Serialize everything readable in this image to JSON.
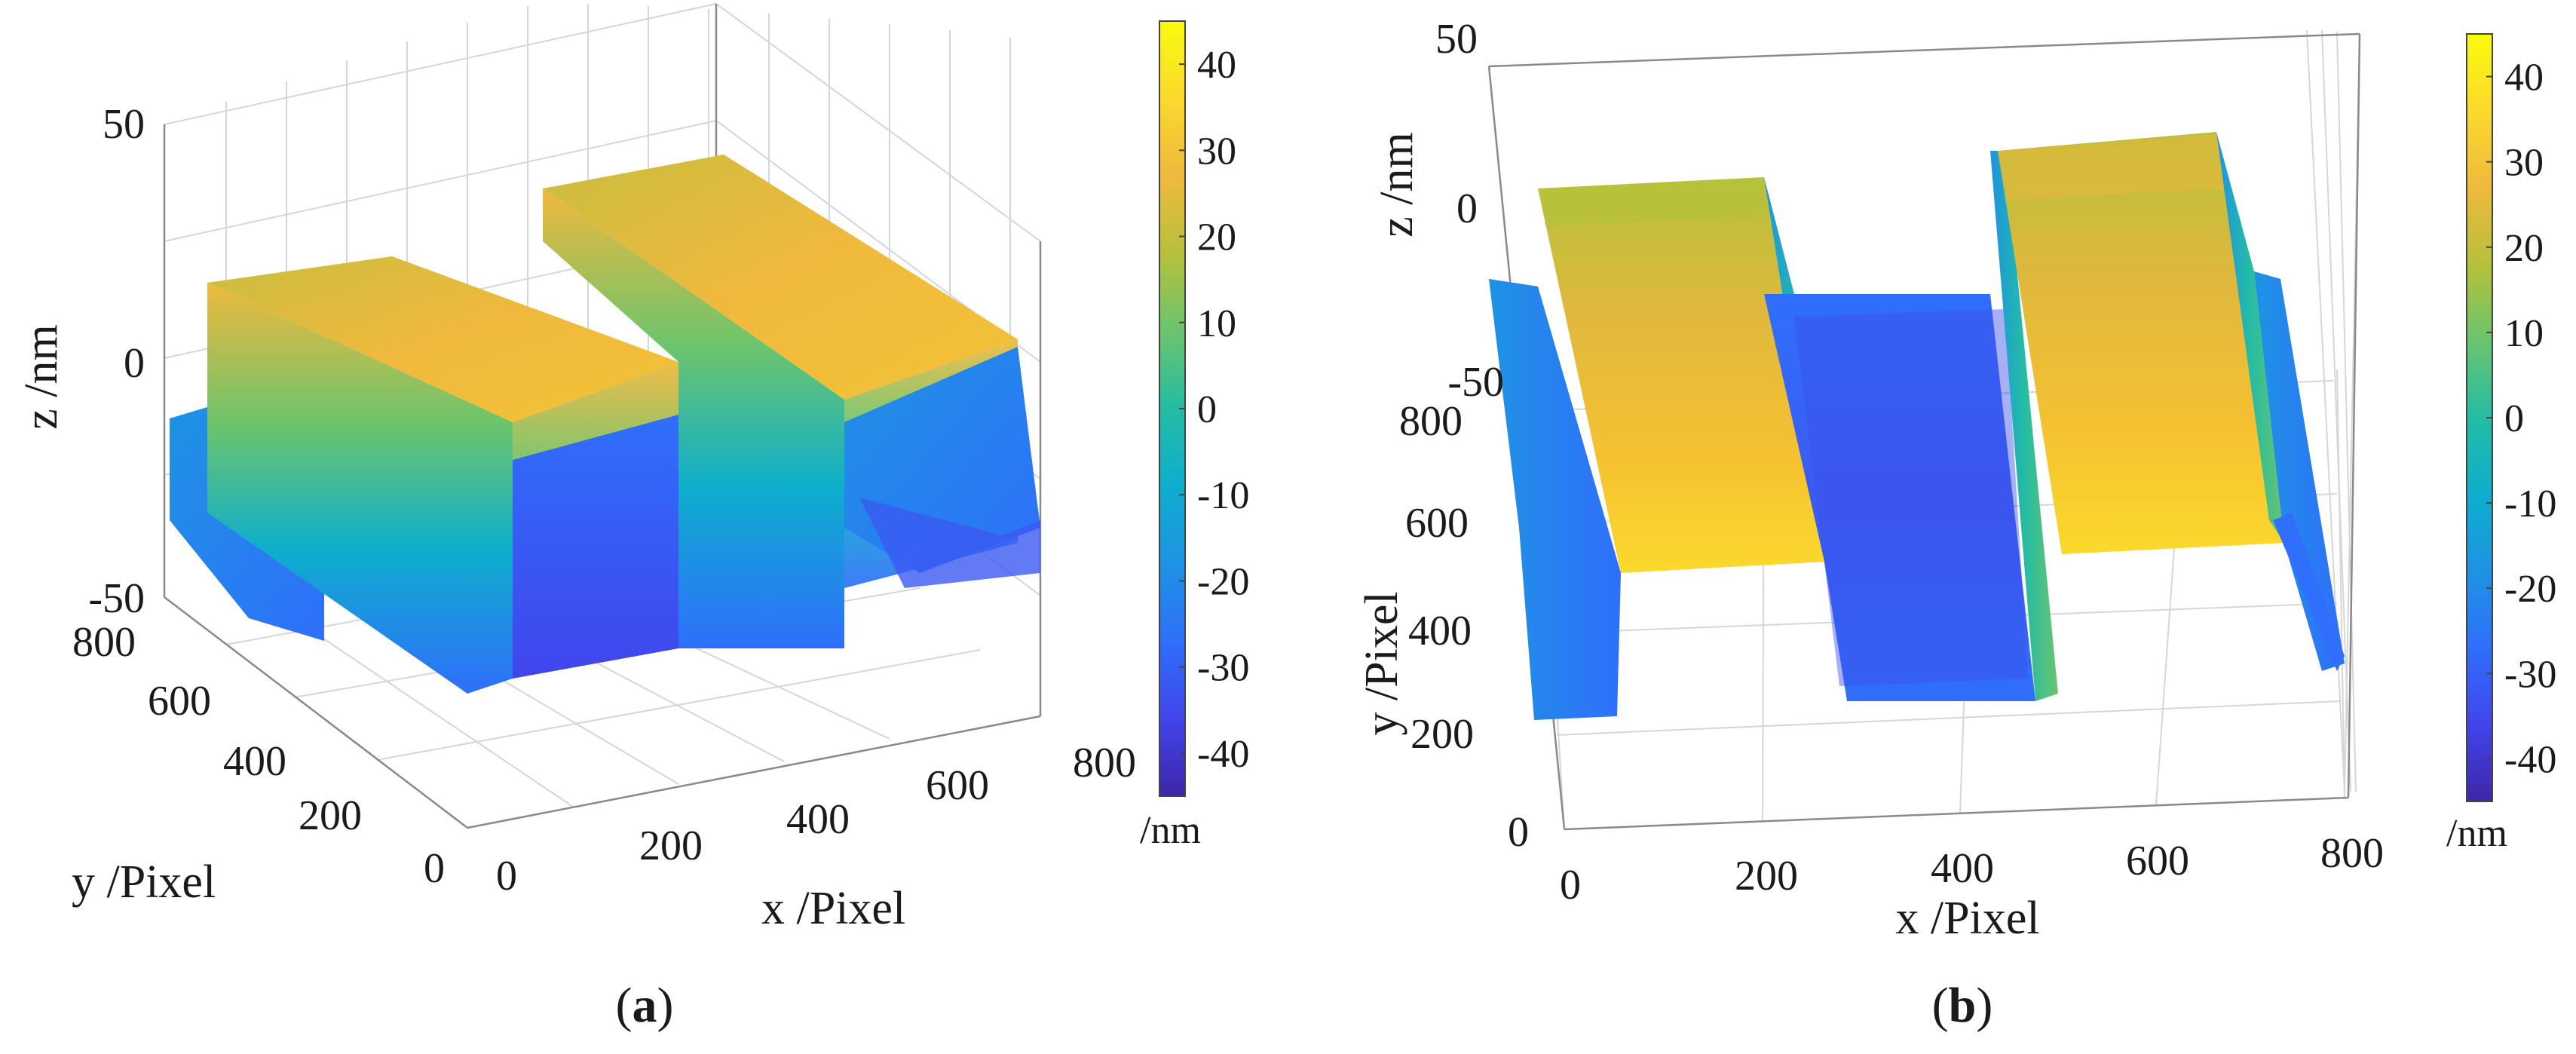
{
  "figure": {
    "colormap": [
      "#3e26a8",
      "#4145ec",
      "#2f6ffb",
      "#1e93e3",
      "#0eaecd",
      "#24bca4",
      "#6ac46d",
      "#b6c13b",
      "#f0b93d",
      "#fbd92c",
      "#f9fb0e"
    ]
  },
  "chart_data": [
    {
      "type": "surface",
      "panel_label_pre": "(",
      "panel_label": "a",
      "panel_label_post": ")",
      "view": "oblique",
      "xlabel": "x /Pixel",
      "ylabel": "y /Pixel",
      "zlabel": "z /nm",
      "xlim": [
        0,
        800
      ],
      "ylim": [
        0,
        800
      ],
      "zlim": [
        -50,
        50
      ],
      "xticks": [
        "0",
        "200",
        "400",
        "600",
        "800"
      ],
      "yticks": [
        "0",
        "200",
        "400",
        "600",
        "800"
      ],
      "zticks": [
        "-50",
        "0",
        "50"
      ],
      "profile_x": [
        0,
        120,
        130,
        300,
        310,
        420,
        430,
        560,
        570,
        800
      ],
      "profile_z": [
        -24,
        -24,
        20,
        20,
        -25,
        -25,
        20,
        20,
        -24,
        -24
      ],
      "colorbar": {
        "ticks": [
          "40",
          "30",
          "20",
          "10",
          "0",
          "-10",
          "-20",
          "-30",
          "-40"
        ],
        "range": [
          -45,
          45
        ],
        "unit": "/nm"
      }
    },
    {
      "type": "surface",
      "panel_label_pre": "(",
      "panel_label": "b",
      "panel_label_post": ")",
      "view": "top-tilted",
      "xlabel": "x /Pixel",
      "ylabel": "y /Pixel",
      "zlabel": "z /nm",
      "xlim": [
        0,
        800
      ],
      "ylim": [
        0,
        800
      ],
      "zlim": [
        -50,
        50
      ],
      "xticks": [
        "0",
        "200",
        "400",
        "600",
        "800"
      ],
      "yticks": [
        "0",
        "200",
        "400",
        "600",
        "800"
      ],
      "zticks": [
        "-50",
        "0",
        "50"
      ],
      "profile_x": [
        0,
        120,
        130,
        300,
        310,
        420,
        430,
        560,
        570,
        800
      ],
      "profile_z": [
        -24,
        -24,
        20,
        20,
        -25,
        -25,
        20,
        20,
        -24,
        -24
      ],
      "colorbar": {
        "ticks": [
          "40",
          "30",
          "20",
          "10",
          "0",
          "-10",
          "-20",
          "-30",
          "-40"
        ],
        "range": [
          -45,
          45
        ],
        "unit": "/nm"
      }
    }
  ]
}
